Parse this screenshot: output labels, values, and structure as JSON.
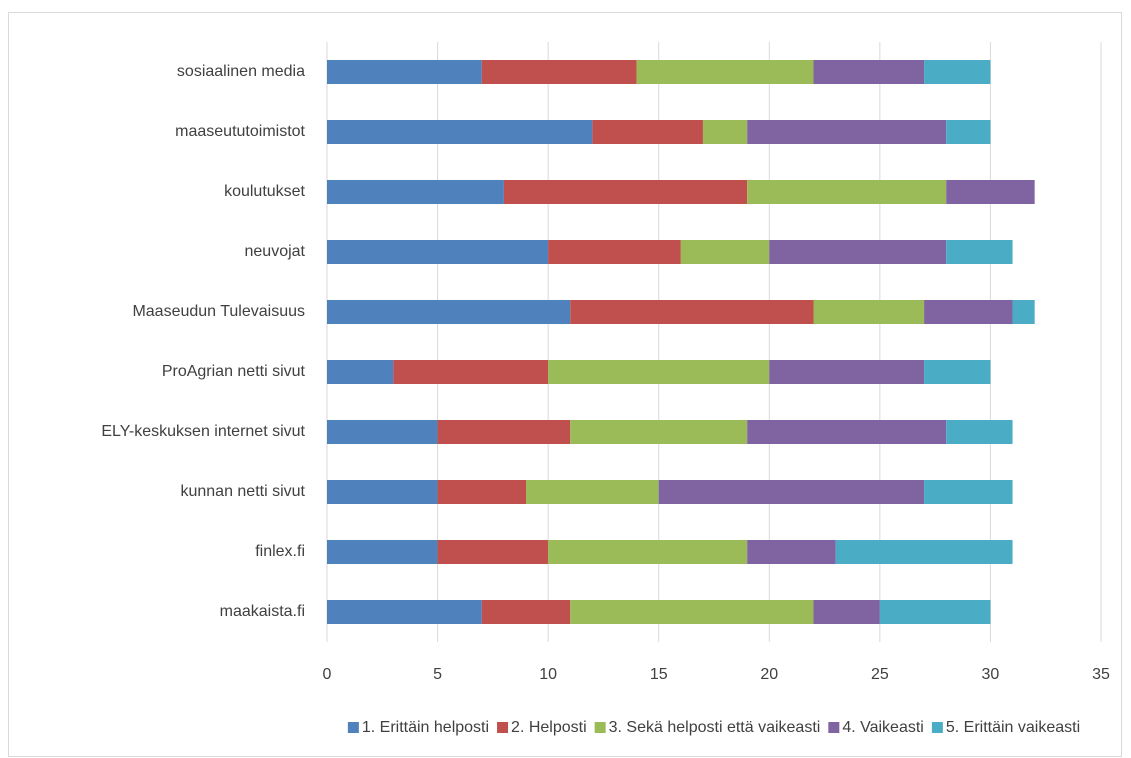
{
  "chart_data": {
    "type": "stacked-barh",
    "categories": [
      "sosiaalinen media",
      "maaseututoimistot",
      "koulutukset",
      "neuvojat",
      "Maaseudun Tulevaisuus",
      "ProAgrian netti sivut",
      "ELY-keskuksen internet sivut",
      "kunnan netti sivut",
      "finlex.fi",
      "maakaista.fi"
    ],
    "series": [
      {
        "name": "1. Erittäin helposti",
        "color": "#4f81bd",
        "values": [
          7,
          12,
          8,
          10,
          11,
          3,
          5,
          5,
          5,
          7
        ]
      },
      {
        "name": "2. Helposti",
        "color": "#c0504d",
        "values": [
          7,
          5,
          11,
          6,
          11,
          7,
          6,
          4,
          5,
          4
        ]
      },
      {
        "name": "3. Sekä helposti että vaikeasti",
        "color": "#9bbb59",
        "values": [
          8,
          2,
          9,
          4,
          5,
          10,
          8,
          6,
          9,
          11
        ]
      },
      {
        "name": "4. Vaikeasti",
        "color": "#8064a2",
        "values": [
          5,
          9,
          4,
          8,
          4,
          7,
          9,
          12,
          4,
          3
        ]
      },
      {
        "name": "5. Erittäin vaikeasti",
        "color": "#4bacc6",
        "values": [
          3,
          2,
          0,
          3,
          1,
          3,
          3,
          4,
          8,
          5
        ]
      }
    ],
    "xlim": [
      0,
      35
    ],
    "xticks": [
      0,
      5,
      10,
      15,
      20,
      25,
      30,
      35
    ],
    "grid": true,
    "legend": "bottom"
  }
}
